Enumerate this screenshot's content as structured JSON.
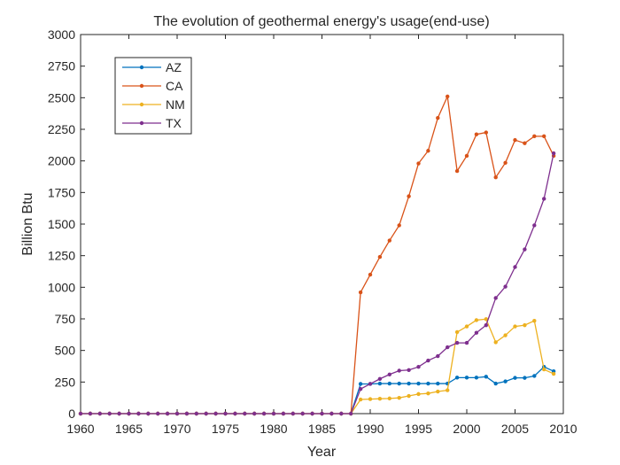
{
  "chart_data": {
    "type": "line",
    "title": "The evolution of geothermal energy's usage(end-use)",
    "xlabel": "Year",
    "ylabel": "Billion Btu",
    "xlim": [
      1960,
      2010
    ],
    "ylim": [
      0,
      3000
    ],
    "xticks": [
      1960,
      1965,
      1970,
      1975,
      1980,
      1985,
      1990,
      1995,
      2000,
      2005,
      2010
    ],
    "yticks": [
      0,
      250,
      500,
      750,
      1000,
      1250,
      1500,
      1750,
      2000,
      2250,
      2500,
      2750,
      3000
    ],
    "grid": false,
    "legend_position": "top-left",
    "x": [
      1960,
      1961,
      1962,
      1963,
      1964,
      1965,
      1966,
      1967,
      1968,
      1969,
      1970,
      1971,
      1972,
      1973,
      1974,
      1975,
      1976,
      1977,
      1978,
      1979,
      1980,
      1981,
      1982,
      1983,
      1984,
      1985,
      1986,
      1987,
      1988,
      1989,
      1990,
      1991,
      1992,
      1993,
      1994,
      1995,
      1996,
      1997,
      1998,
      1999,
      2000,
      2001,
      2002,
      2003,
      2004,
      2005,
      2006,
      2007,
      2008,
      2009
    ],
    "series": [
      {
        "name": "AZ",
        "color": "#0072BD",
        "values": [
          0,
          0,
          0,
          0,
          0,
          0,
          0,
          0,
          0,
          0,
          0,
          0,
          0,
          0,
          0,
          0,
          0,
          0,
          0,
          0,
          0,
          0,
          0,
          0,
          0,
          0,
          0,
          0,
          0,
          235,
          235,
          238,
          238,
          238,
          238,
          238,
          238,
          238,
          238,
          285,
          285,
          285,
          292,
          238,
          255,
          283,
          283,
          298,
          370,
          335
        ]
      },
      {
        "name": "CA",
        "color": "#D95319",
        "values": [
          0,
          0,
          0,
          0,
          0,
          0,
          0,
          0,
          0,
          0,
          0,
          0,
          0,
          0,
          0,
          0,
          0,
          0,
          0,
          0,
          0,
          0,
          0,
          0,
          0,
          0,
          0,
          0,
          0,
          960,
          1100,
          1240,
          1370,
          1490,
          1720,
          1980,
          2080,
          2340,
          2510,
          1920,
          2040,
          2210,
          2225,
          1870,
          1985,
          2165,
          2140,
          2195,
          2195,
          2040
        ]
      },
      {
        "name": "NM",
        "color": "#EDB120",
        "values": [
          0,
          0,
          0,
          0,
          0,
          0,
          0,
          0,
          0,
          0,
          0,
          0,
          0,
          0,
          0,
          0,
          0,
          0,
          0,
          0,
          0,
          0,
          0,
          0,
          0,
          0,
          0,
          0,
          0,
          112,
          115,
          118,
          120,
          125,
          140,
          155,
          160,
          175,
          185,
          645,
          690,
          740,
          748,
          565,
          620,
          690,
          700,
          735,
          350,
          315
        ]
      },
      {
        "name": "TX",
        "color": "#7E2F8E",
        "values": [
          0,
          0,
          0,
          0,
          0,
          0,
          0,
          0,
          0,
          0,
          0,
          0,
          0,
          0,
          0,
          0,
          0,
          0,
          0,
          0,
          0,
          0,
          0,
          0,
          0,
          0,
          0,
          0,
          0,
          195,
          235,
          275,
          310,
          340,
          345,
          370,
          420,
          455,
          525,
          560,
          560,
          640,
          700,
          915,
          1005,
          1160,
          1300,
          1490,
          1700,
          2060
        ]
      }
    ]
  }
}
